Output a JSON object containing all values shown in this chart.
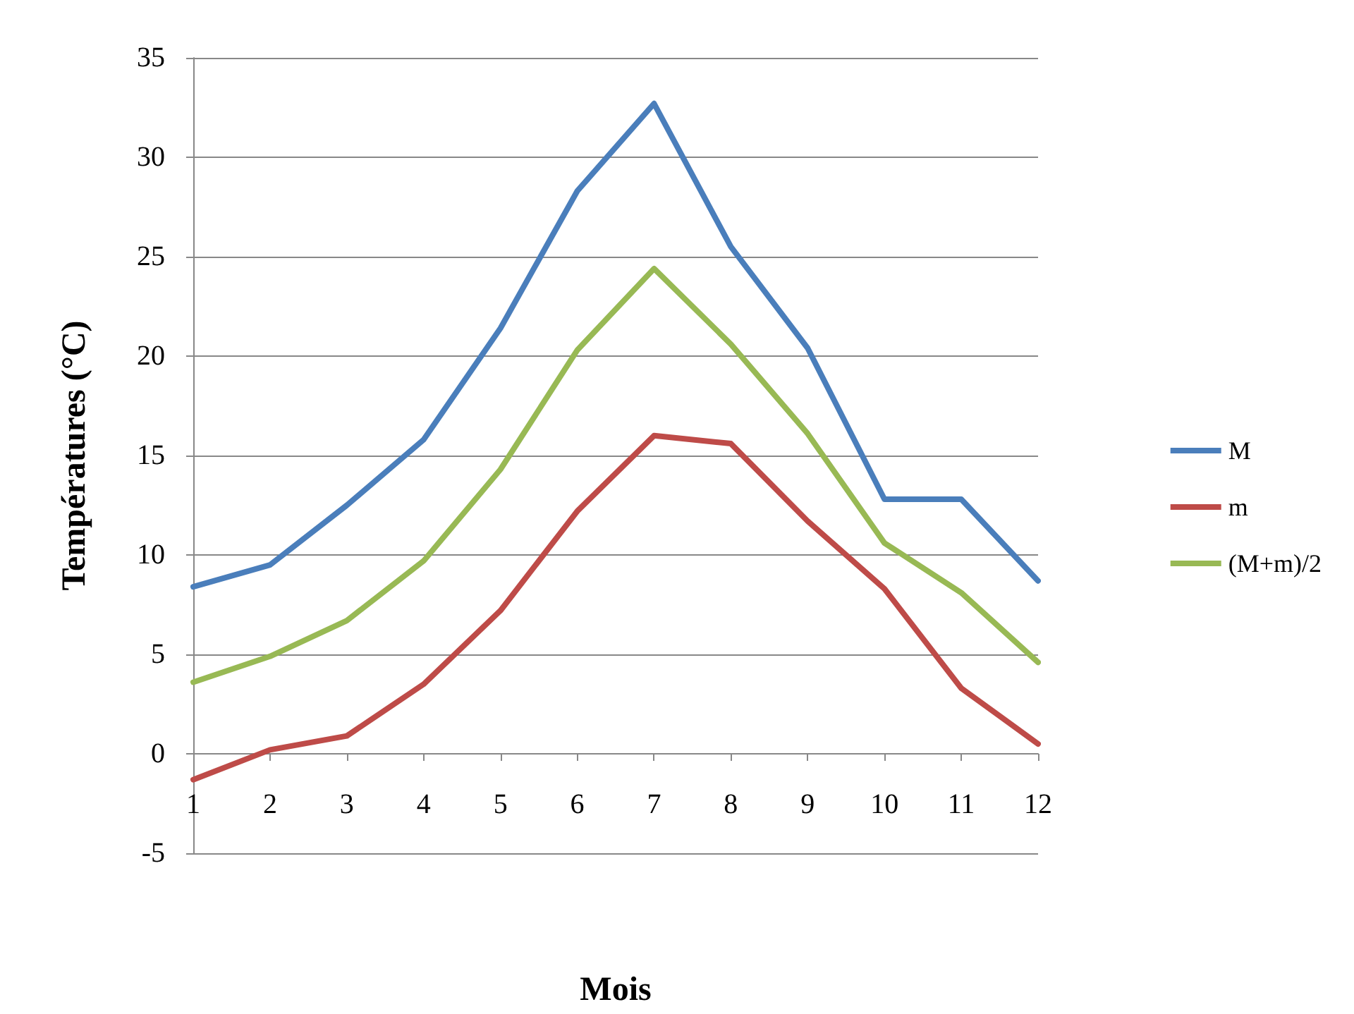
{
  "chart_data": {
    "type": "line",
    "xlabel": "Mois",
    "ylabel": "Températures (°C)",
    "x": [
      1,
      2,
      3,
      4,
      5,
      6,
      7,
      8,
      9,
      10,
      11,
      12
    ],
    "xlim": [
      1,
      12
    ],
    "xticks": [
      1,
      2,
      3,
      4,
      5,
      6,
      7,
      8,
      9,
      10,
      11,
      12
    ],
    "ylim": [
      -5,
      35
    ],
    "yticks": [
      -5,
      0,
      5,
      10,
      15,
      20,
      25,
      30,
      35
    ],
    "grid": "y",
    "legend": "right",
    "marker": "none",
    "line_style": "solid",
    "series": [
      {
        "name": "M",
        "color": "#4a7ebb",
        "values": [
          8.4,
          9.5,
          12.5,
          15.8,
          21.4,
          28.3,
          32.7,
          25.5,
          20.4,
          12.8,
          12.8,
          8.7
        ]
      },
      {
        "name": "m",
        "color": "#be4b48",
        "values": [
          -1.3,
          0.2,
          0.9,
          3.5,
          7.2,
          12.2,
          16.0,
          15.6,
          11.7,
          8.3,
          3.3,
          0.5
        ]
      },
      {
        "name": "(M+m)/2",
        "color": "#98b954",
        "values": [
          3.6,
          4.9,
          6.7,
          9.7,
          14.3,
          20.3,
          24.4,
          20.6,
          16.1,
          10.6,
          8.1,
          4.6
        ]
      }
    ]
  }
}
